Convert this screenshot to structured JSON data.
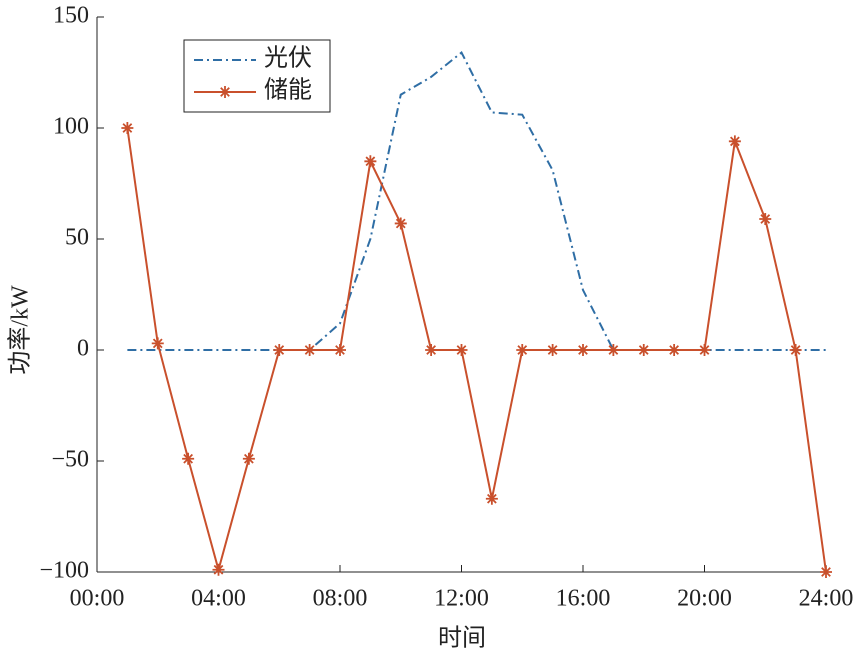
{
  "chart_data": {
    "type": "line",
    "xlabel": "时间",
    "ylabel": "功率/kW",
    "x": [
      1,
      2,
      3,
      4,
      5,
      6,
      7,
      8,
      9,
      10,
      11,
      12,
      13,
      14,
      15,
      16,
      17,
      18,
      19,
      20,
      21,
      22,
      23,
      24
    ],
    "series": [
      {
        "name": "光伏",
        "color": "#2f6ea5",
        "style": "dashdot",
        "marker": "none",
        "values": [
          0,
          0,
          0,
          0,
          0,
          0,
          0,
          12,
          50,
          115,
          123,
          134,
          107,
          106,
          81,
          27,
          0,
          0,
          0,
          0,
          0,
          0,
          0,
          0
        ]
      },
      {
        "name": "储能",
        "color": "#c9502c",
        "style": "solid",
        "marker": "asterisk",
        "values": [
          100,
          3,
          -49,
          -99,
          -49,
          0,
          0,
          0,
          85,
          57,
          0,
          0,
          -67,
          0,
          0,
          0,
          0,
          0,
          0,
          0,
          94,
          59,
          0,
          -100
        ]
      }
    ],
    "xlim": [
      0,
      24
    ],
    "xticks": [
      {
        "value": 0,
        "label": "00:00"
      },
      {
        "value": 4,
        "label": "04:00"
      },
      {
        "value": 8,
        "label": "08:00"
      },
      {
        "value": 12,
        "label": "12:00"
      },
      {
        "value": 16,
        "label": "16:00"
      },
      {
        "value": 20,
        "label": "20:00"
      },
      {
        "value": 24,
        "label": "24:00"
      }
    ],
    "ylim": [
      -100,
      150
    ],
    "yticks": [
      {
        "value": -100,
        "label": "−100"
      },
      {
        "value": -50,
        "label": "−50"
      },
      0,
      50,
      100,
      150
    ],
    "legend": "upper left",
    "grid": false
  }
}
